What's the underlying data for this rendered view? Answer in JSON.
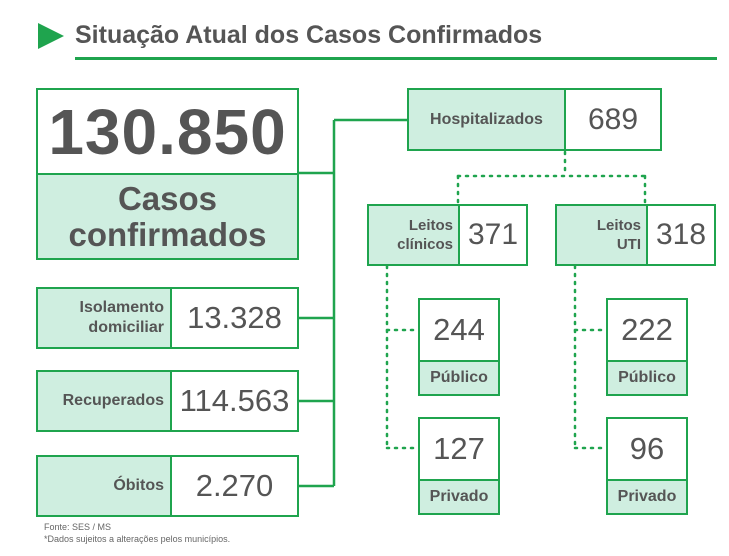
{
  "header": {
    "title": "Situação Atual dos Casos Confirmados"
  },
  "total": {
    "value": "130.850",
    "label_line1": "Casos",
    "label_line2": "confirmados"
  },
  "categories": [
    {
      "label_line1": "Isolamento",
      "label_line2": "domiciliar",
      "value": "13.328"
    },
    {
      "label_line1": "Recuperados",
      "label_line2": "",
      "value": "114.563"
    },
    {
      "label_line1": "Óbitos",
      "label_line2": "",
      "value": "2.270"
    }
  ],
  "hospitalizados": {
    "label": "Hospitalizados",
    "value": "689"
  },
  "leitos_clinicos": {
    "label_line1": "Leitos",
    "label_line2": "clínicos",
    "value": "371",
    "publico": {
      "value": "244",
      "label": "Público"
    },
    "privado": {
      "value": "127",
      "label": "Privado"
    }
  },
  "leitos_uti": {
    "label_line1": "Leitos",
    "label_line2": "UTI",
    "value": "318",
    "publico": {
      "value": "222",
      "label": "Público"
    },
    "privado": {
      "value": "96",
      "label": "Privado"
    }
  },
  "footer": {
    "source": "Fonte: SES / MS",
    "note": "*Dados sujeitos a alterações pelos municípios."
  },
  "colors": {
    "accent": "#1fa44e",
    "label_fill": "#cfeee0",
    "text": "#555555"
  }
}
